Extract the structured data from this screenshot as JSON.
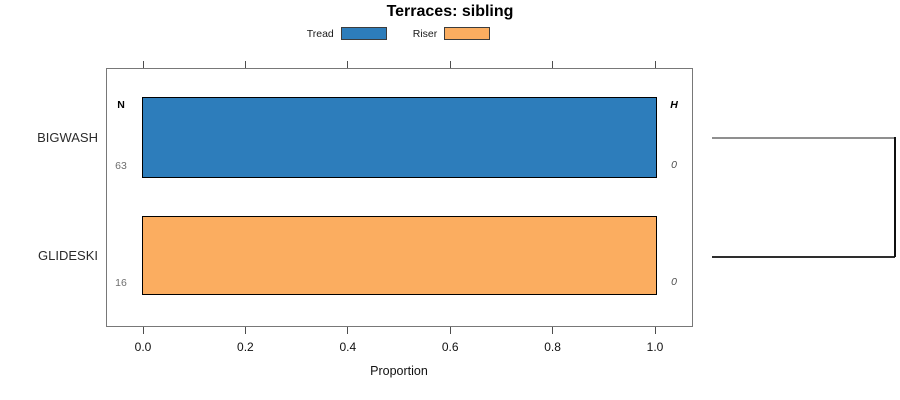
{
  "chart_data": {
    "type": "bar",
    "orientation": "horizontal",
    "title": "Terraces: sibling",
    "xlabel": "Proportion",
    "xlim": [
      0,
      1
    ],
    "xticks": [
      "0.0",
      "0.2",
      "0.4",
      "0.6",
      "0.8",
      "1.0"
    ],
    "grid": false,
    "legend_position": "top-center",
    "legend": [
      {
        "label": "Tread",
        "color": "#2d7dbb"
      },
      {
        "label": "Riser",
        "color": "#fbad60"
      }
    ],
    "categories": [
      "BIGWASH",
      "GLIDESKI"
    ],
    "rows": [
      {
        "category": "BIGWASH",
        "series": "Tread",
        "proportion": 1.0,
        "n": 63,
        "h": 0,
        "color": "#2d7dbb"
      },
      {
        "category": "GLIDESKI",
        "series": "Riser",
        "proportion": 1.0,
        "n": 16,
        "h": 0,
        "color": "#fbad60"
      }
    ],
    "annotations": {
      "n_column_header": "N",
      "h_column_header": "H"
    },
    "connector": {
      "type": "bracket",
      "side": "right",
      "joins": [
        "BIGWASH",
        "GLIDESKI"
      ]
    }
  }
}
